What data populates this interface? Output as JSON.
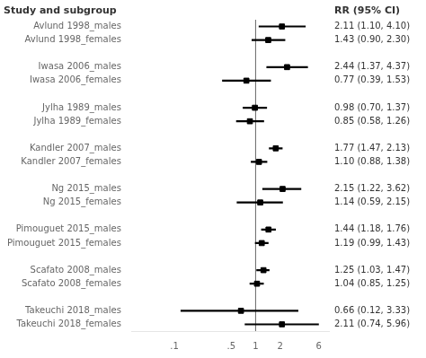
{
  "chart_data": {
    "type": "forest",
    "annotations": [
      "Study and subgroup",
      "RR (95% CI)"
    ],
    "categories": [
      "Avlund 1998_males",
      "Avlund 1998_females",
      null,
      "Iwasa 2006_males",
      "Iwasa 2006_females",
      null,
      "Jylha 1989_males",
      "Jylha 1989_females",
      null,
      "Kandler 2007_males",
      "Kandler 2007_females",
      null,
      "Ng 2015_males",
      "Ng 2015_females",
      null,
      "Pimouguet 2015_males",
      "Pimouguet 2015_females",
      null,
      "Scafato 2008_males",
      "Scafato 2008_females",
      null,
      "Takeuchi 2018_males",
      "Takeuchi 2018_females"
    ],
    "values": [
      2.11,
      1.43,
      null,
      2.44,
      0.77,
      null,
      0.98,
      0.85,
      null,
      1.77,
      1.1,
      null,
      2.15,
      1.14,
      null,
      1.44,
      1.19,
      null,
      1.25,
      1.04,
      null,
      0.66,
      2.11
    ],
    "ci_lo": [
      1.1,
      0.9,
      null,
      1.37,
      0.39,
      null,
      0.7,
      0.58,
      null,
      1.47,
      0.88,
      null,
      1.22,
      0.59,
      null,
      1.18,
      0.99,
      null,
      1.03,
      0.85,
      null,
      0.12,
      0.74
    ],
    "ci_hi": [
      4.1,
      2.3,
      null,
      4.37,
      1.53,
      null,
      1.37,
      1.26,
      null,
      2.13,
      1.38,
      null,
      3.62,
      2.15,
      null,
      1.76,
      1.43,
      null,
      1.47,
      1.25,
      null,
      3.33,
      5.96
    ],
    "value_labels": [
      "2.11 (1.10, 4.10)",
      "1.43 (0.90, 2.30)",
      null,
      "2.44 (1.37, 4.37)",
      "0.77 (0.39, 1.53)",
      null,
      "0.98 (0.70, 1.37)",
      "0.85 (0.58, 1.26)",
      null,
      "1.77 (1.47, 2.13)",
      "1.10 (0.88, 1.38)",
      null,
      "2.15 (1.22, 3.62)",
      "1.14 (0.59, 2.15)",
      null,
      "1.44 (1.18, 1.76)",
      "1.19 (0.99, 1.43)",
      null,
      "1.25 (1.03, 1.47)",
      "1.04 (0.85, 1.25)",
      null,
      "0.66 (0.12, 3.33)",
      "2.11 (0.74, 5.96)"
    ],
    "data_labels": true,
    "reference_line": 1,
    "log": "x",
    "xlim": [
      0.03,
      8.0
    ],
    "xticks": [
      {
        "value": 0.1,
        "label": ".1"
      },
      {
        "value": 0.5,
        "label": ".5"
      },
      1,
      2,
      6
    ],
    "grid": false,
    "marker": "square",
    "color": "#000000"
  }
}
